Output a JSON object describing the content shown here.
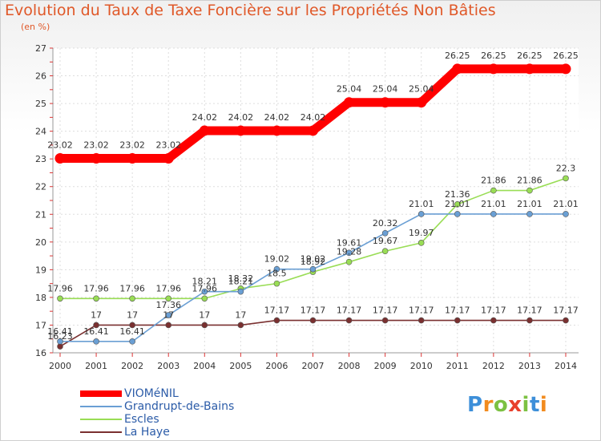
{
  "chart_data": {
    "type": "line",
    "title": "Evolution du Taux de Taxe Foncière sur les Propriétés Non Bâties",
    "ylabel": "(en %)",
    "xlabel": "",
    "categories": [
      "2000",
      "2001",
      "2002",
      "2003",
      "2004",
      "2005",
      "2006",
      "2007",
      "2008",
      "2009",
      "2010",
      "2011",
      "2012",
      "2013",
      "2014"
    ],
    "ylim": [
      16,
      27
    ],
    "yticks": [
      16,
      17,
      18,
      19,
      20,
      21,
      22,
      23,
      24,
      25,
      26,
      27
    ],
    "series": [
      {
        "name": "VIOMéNIL",
        "color": "#ff0000",
        "values": [
          23.02,
          23.02,
          23.02,
          23.02,
          24.02,
          24.02,
          24.02,
          24.02,
          25.04,
          25.04,
          25.04,
          26.25,
          26.25,
          26.25,
          26.25
        ],
        "labels": [
          "23.02",
          "23.02",
          "23.02",
          "23.02",
          "24.02",
          "24.02",
          "24.02",
          "24.02",
          "25.04",
          "25.04",
          "25.04",
          "26.25",
          "26.25",
          "26.25",
          "26.25"
        ]
      },
      {
        "name": "Grandrupt-de-Bains",
        "color": "#6a9fd4",
        "values": [
          16.41,
          16.41,
          16.41,
          17.36,
          18.21,
          18.21,
          19.02,
          19.02,
          19.61,
          20.32,
          21.01,
          21.01,
          21.01,
          21.01,
          21.01
        ],
        "labels": [
          "16.41",
          "16.41",
          "16.41",
          "17.36",
          "18.21",
          "18.21",
          "19.02",
          "19.02",
          "19.61",
          "20.32",
          "21.01",
          "21.01",
          "21.01",
          "21.01",
          "21.01"
        ]
      },
      {
        "name": "Escles",
        "color": "#99dd55",
        "values": [
          17.96,
          17.96,
          17.96,
          17.96,
          17.96,
          18.32,
          18.5,
          18.92,
          19.28,
          19.67,
          19.97,
          21.36,
          21.86,
          21.86,
          22.3
        ],
        "labels": [
          "17.96",
          "17.96",
          "17.96",
          "17.96",
          "17.96",
          "18.32",
          "18.5",
          "18.92",
          "19.28",
          "19.67",
          "19.97",
          "21.36",
          "21.86",
          "21.86",
          "22.3"
        ]
      },
      {
        "name": "La Haye",
        "color": "#7a3030",
        "values": [
          16.23,
          17,
          17,
          17,
          17,
          17,
          17.17,
          17.17,
          17.17,
          17.17,
          17.17,
          17.17,
          17.17,
          17.17,
          17.17
        ],
        "labels": [
          "16.23",
          "17",
          "17",
          "17",
          "17",
          "17",
          "17.17",
          "17.17",
          "17.17",
          "17.17",
          "17.17",
          "17.17",
          "17.17",
          "17.17",
          "17.17"
        ]
      }
    ]
  },
  "brand": {
    "letters": [
      "P",
      "r",
      "o",
      "x",
      "i",
      "t",
      "i"
    ],
    "colors": [
      "#3d8fd9",
      "#f28b1e",
      "#7cc142",
      "#e8402d",
      "#7cc142",
      "#3d8fd9",
      "#f28b1e"
    ]
  }
}
